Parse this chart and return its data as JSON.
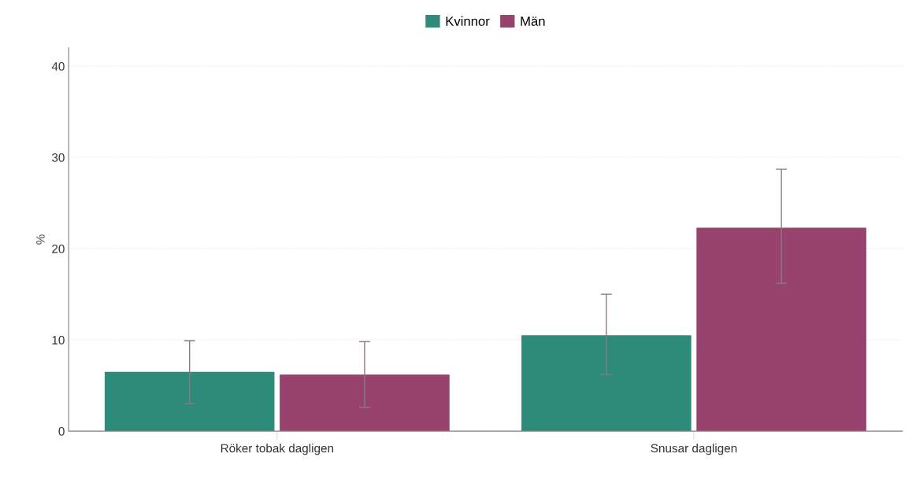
{
  "chart_data": {
    "type": "bar",
    "ylabel": "%",
    "categories": [
      "Röker tobak dagligen",
      "Snusar dagligen"
    ],
    "series": [
      {
        "name": "Kvinnor",
        "color": "#2e8b7a",
        "values": [
          6.5,
          10.5
        ],
        "errors": [
          [
            3.0,
            9.9
          ],
          [
            6.2,
            15.0
          ]
        ]
      },
      {
        "name": "Män",
        "color": "#98426e",
        "values": [
          6.2,
          22.3
        ],
        "errors": [
          [
            2.6,
            9.8
          ],
          [
            16.2,
            28.7
          ]
        ]
      }
    ],
    "ylim": [
      0,
      42
    ],
    "yticks": [
      0,
      10,
      20,
      30,
      40
    ],
    "grid": "y",
    "legend": "top"
  }
}
